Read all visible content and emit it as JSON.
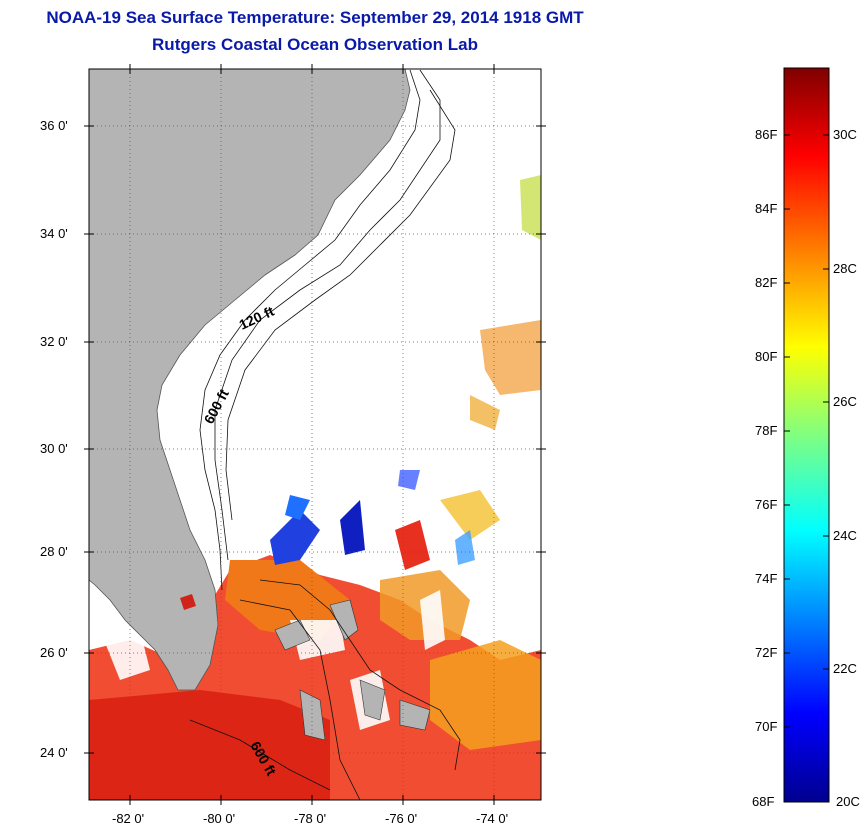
{
  "title": {
    "line1": "NOAA-19 Sea Surface Temperature:  September 29, 2014 1918 GMT",
    "line2": "Rutgers Coastal Ocean Observation Lab"
  },
  "map": {
    "lat_labels": [
      "36 0'",
      "34 0'",
      "32 0'",
      "30 0'",
      "28 0'",
      "26 0'",
      "24 0'"
    ],
    "lon_labels": [
      "-82 0'",
      "-80 0'",
      "-78 0'",
      "-76 0'",
      "-74 0'"
    ],
    "contour_labels": [
      "120 ft",
      "600 ft",
      "600 ft"
    ],
    "land_color": "#b4b4b4",
    "ocean_color": "#ffffff"
  },
  "colorbar": {
    "f_labels": [
      "86F",
      "84F",
      "82F",
      "80F",
      "78F",
      "76F",
      "74F",
      "72F",
      "70F",
      "68F"
    ],
    "c_labels": [
      "30C",
      "28C",
      "26C",
      "24C",
      "22C",
      "20C"
    ],
    "colors": [
      "#00008f",
      "#0000ff",
      "#0080ff",
      "#00ffff",
      "#80ff80",
      "#ffff00",
      "#ff8000",
      "#ff0000",
      "#800000"
    ]
  }
}
